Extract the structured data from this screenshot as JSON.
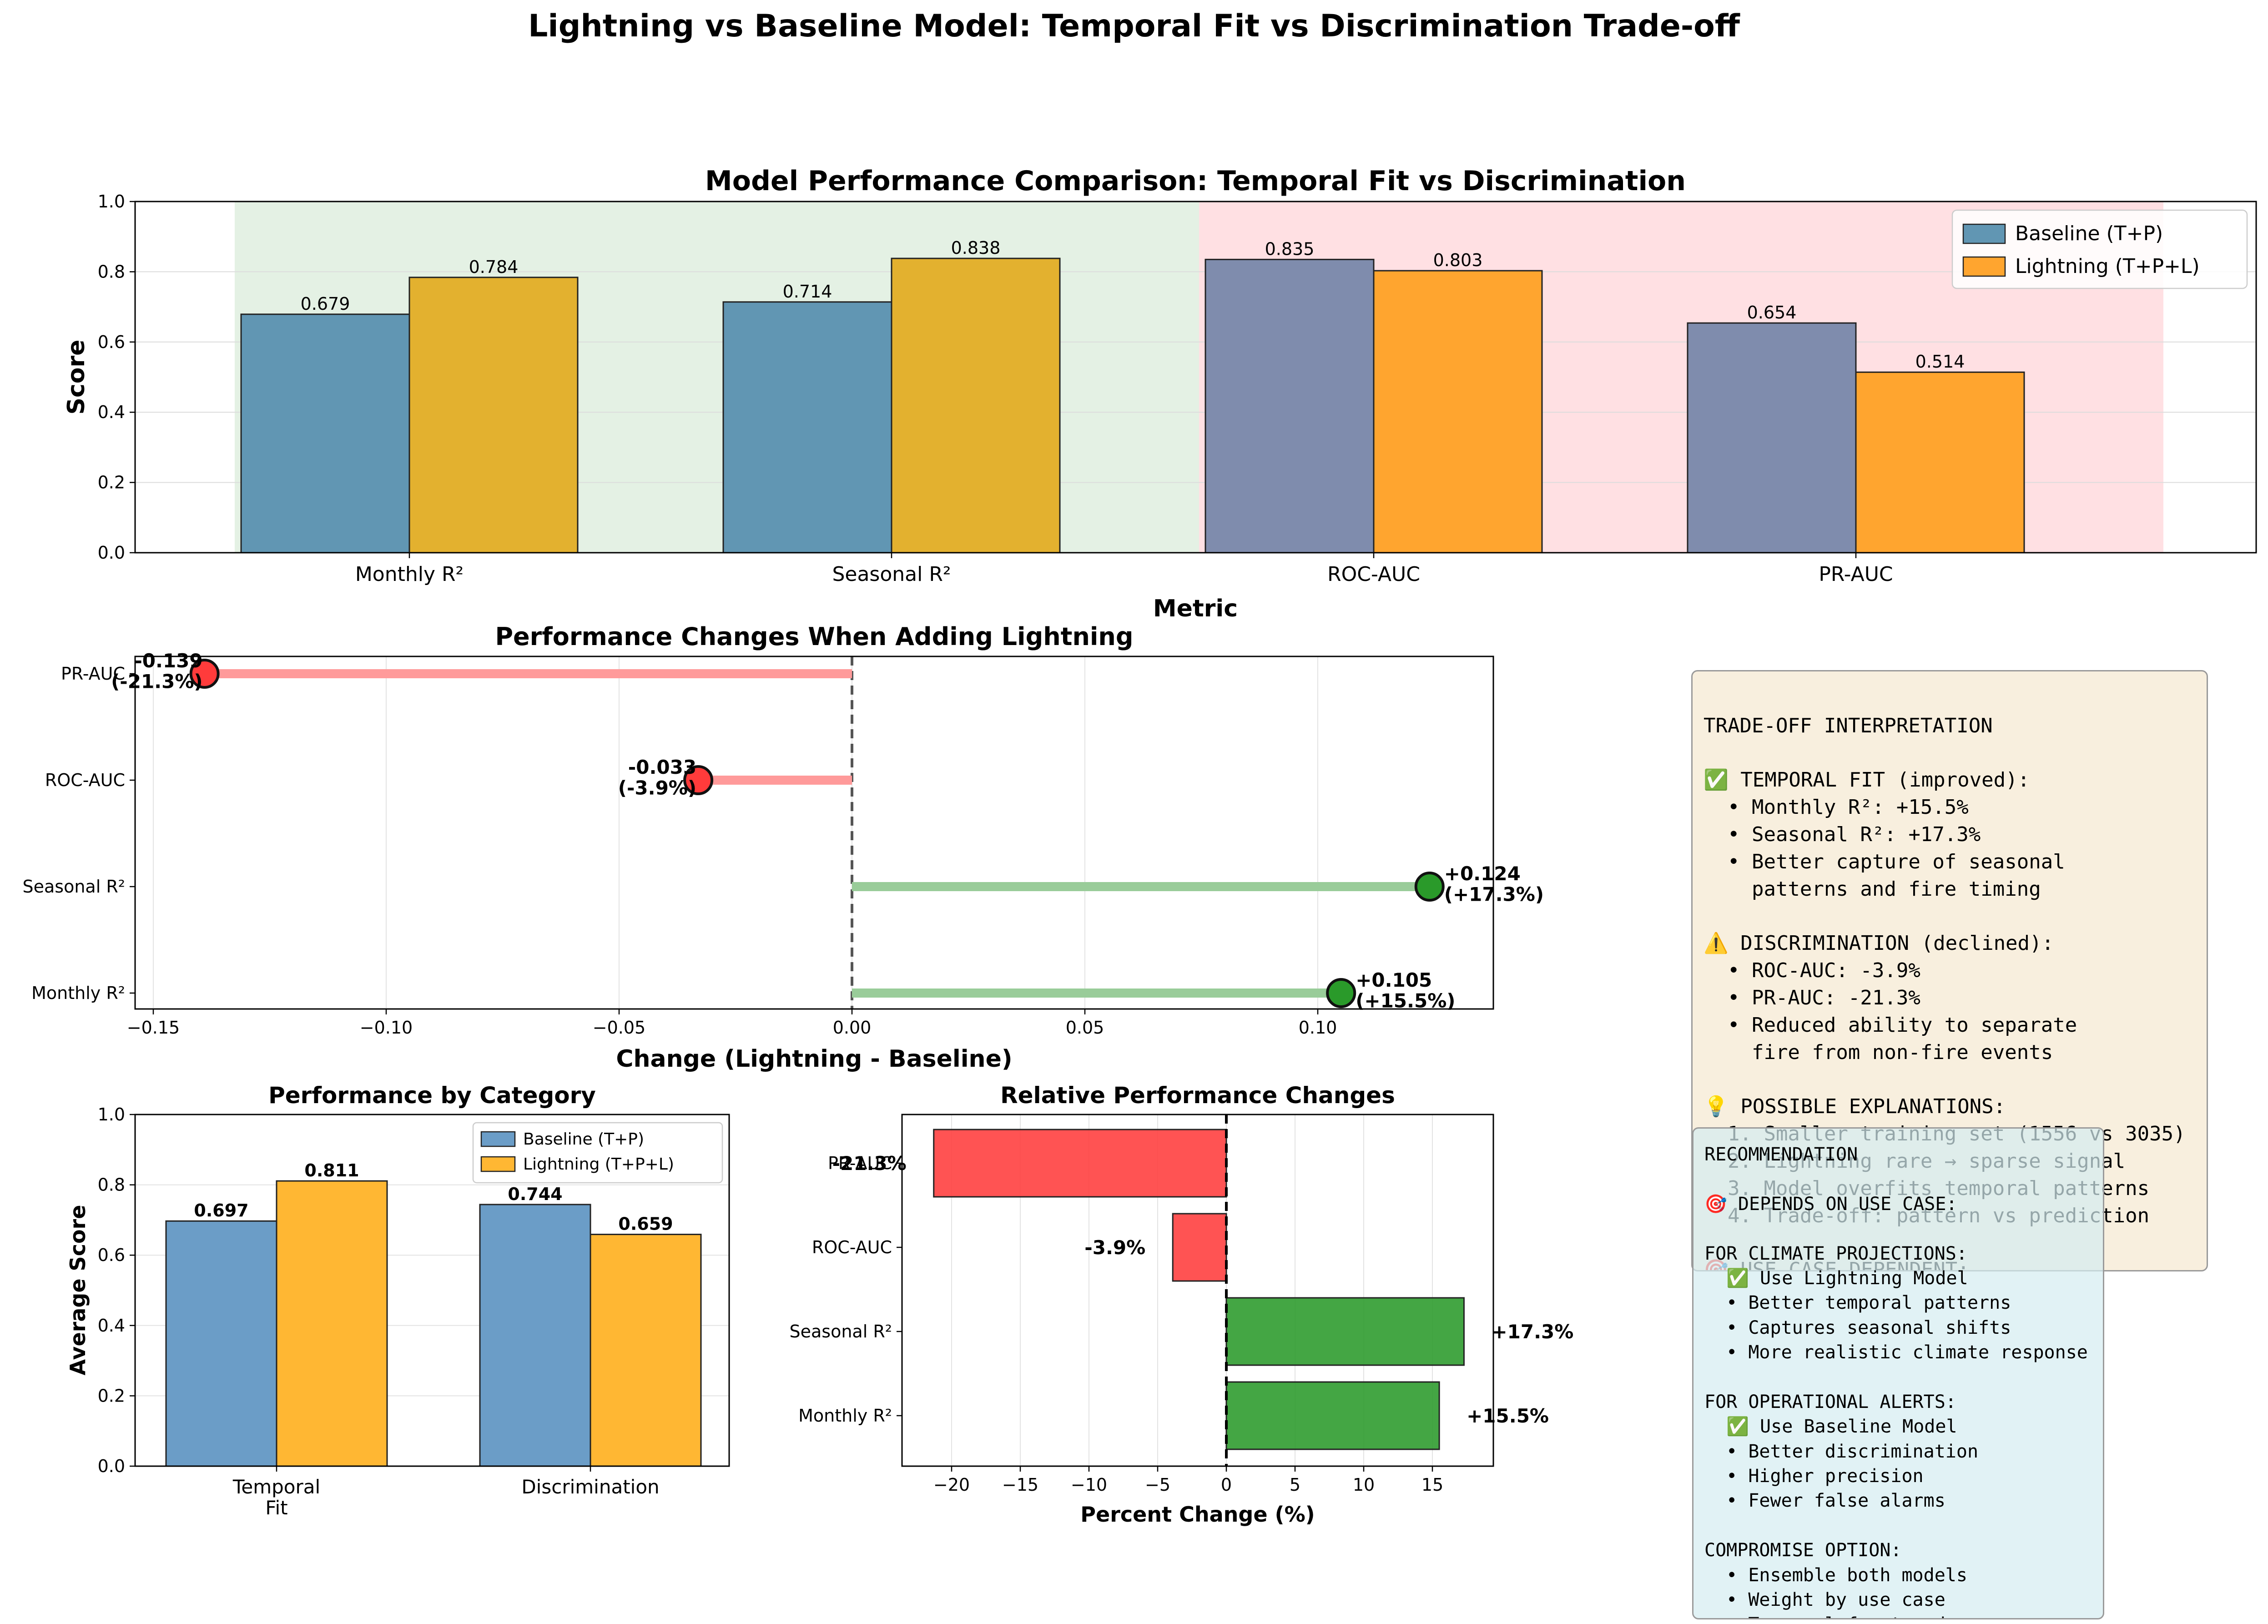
{
  "suptitle": "Lightning vs Baseline Model: Temporal Fit vs Discrimination Trade-off",
  "colors": {
    "baseline": "#6196b3",
    "baseline_alt": "#7f8cad",
    "lightning": "#e3b12f",
    "lightning_alt": "#ffa52f",
    "baseline_cat": "#6b9dc7",
    "lightning_cat": "#ffb733",
    "positive": "#2a9a2a",
    "negative": "#ff3b3b",
    "positive_stem": "#99cc99",
    "negative_stem": "#ff9a9a",
    "temporal_band": "#e4f1e4",
    "discrimination_band": "#ffe0e3"
  },
  "chart_data": [
    {
      "id": "comparison",
      "type": "bar",
      "title": "Model Performance Comparison: Temporal Fit vs Discrimination",
      "xlabel": "Metric",
      "ylabel": "Score",
      "ylim": [
        0,
        1.0
      ],
      "yticks": [
        "0.0",
        "0.2",
        "0.4",
        "0.6",
        "0.8",
        "1.0"
      ],
      "categories": [
        "Monthly R²",
        "Seasonal R²",
        "ROC-AUC",
        "PR-AUC"
      ],
      "series": [
        {
          "name": "Baseline (T+P)",
          "values": [
            0.679,
            0.714,
            0.835,
            0.654
          ],
          "labels": [
            "0.679",
            "0.714",
            "0.835",
            "0.654"
          ]
        },
        {
          "name": "Lightning (T+P+L)",
          "values": [
            0.784,
            0.838,
            0.803,
            0.514
          ],
          "labels": [
            "0.784",
            "0.838",
            "0.803",
            "0.514"
          ]
        }
      ],
      "grid": true,
      "legend": "top-right"
    },
    {
      "id": "changes",
      "type": "lollipop",
      "title": "Performance Changes When Adding Lightning",
      "xlabel": "Change (Lightning - Baseline)",
      "xlim": [
        -0.15,
        0.15
      ],
      "xticks": [
        "−0.15",
        "−0.10",
        "−0.05",
        "0.00",
        "0.05",
        "0.10"
      ],
      "categories": [
        "Monthly R²",
        "Seasonal R²",
        "ROC-AUC",
        "PR-AUC"
      ],
      "values": [
        0.105,
        0.124,
        -0.033,
        -0.139
      ],
      "labels": [
        "+0.105\n(+15.5%)",
        "+0.124\n(+17.3%)",
        "-0.033\n(-3.9%)",
        "-0.139\n(-21.3%)"
      ],
      "grid": true
    },
    {
      "id": "category",
      "type": "bar",
      "title": "Performance by Category",
      "ylabel": "Average Score",
      "ylim": [
        0,
        1.0
      ],
      "yticks": [
        "0.0",
        "0.2",
        "0.4",
        "0.6",
        "0.8",
        "1.0"
      ],
      "categories": [
        "Temporal\nFit",
        "Discrimination"
      ],
      "series": [
        {
          "name": "Baseline (T+P)",
          "values": [
            0.697,
            0.744
          ],
          "labels": [
            "0.697",
            "0.744"
          ]
        },
        {
          "name": "Lightning (T+P+L)",
          "values": [
            0.811,
            0.659
          ],
          "labels": [
            "0.811",
            "0.659"
          ]
        }
      ],
      "grid": true,
      "legend": "top-right"
    },
    {
      "id": "relative",
      "type": "bar",
      "orientation": "horizontal",
      "title": "Relative Performance Changes",
      "xlabel": "Percent Change (%)",
      "xlim": [
        -23.5,
        19.5
      ],
      "xticks": [
        "−20",
        "−15",
        "−10",
        "−5",
        "0",
        "5",
        "10",
        "15"
      ],
      "categories": [
        "Monthly R²",
        "Seasonal R²",
        "ROC-AUC",
        "PR-AUC"
      ],
      "values": [
        15.5,
        17.3,
        -3.9,
        -21.3
      ],
      "labels": [
        "+15.5%",
        "+17.3%",
        "-3.9%",
        "-21.3%"
      ],
      "grid": true
    }
  ],
  "panels": {
    "tradeoff_text": "\nTRADE-OFF INTERPRETATION\n\n✅ TEMPORAL FIT (improved):\n  • Monthly R²: +15.5%\n  • Seasonal R²: +17.3%\n  • Better capture of seasonal\n    patterns and fire timing\n\n⚠️ DISCRIMINATION (declined):\n  • ROC-AUC: -3.9%\n  • PR-AUC: -21.3%\n  • Reduced ability to separate\n    fire from non-fire events\n\n💡 POSSIBLE EXPLANATIONS:\n  1. Smaller training set (1556 vs 3035)\n  2. Lightning rare → sparse signal\n  3. Model overfits temporal patterns\n  4. Trade-off: pattern vs prediction\n\n🎯 USE CASE DEPENDENT:\n  • Climate projections → Lightning\n  • Real-time alerts → Baseline",
    "recommendation_text": "RECOMMENDATION\n\n🎯 DEPENDS ON USE CASE:\n\nFOR CLIMATE PROJECTIONS:\n  ✅ Use Lightning Model\n  • Better temporal patterns\n  • Captures seasonal shifts\n  • More realistic climate response\n\nFOR OPERATIONAL ALERTS:\n  ✅ Use Baseline Model\n  • Better discrimination\n  • Higher precision\n  • Fewer false alarms\n\nCOMPROMISE OPTION:\n  • Ensemble both models\n  • Weight by use case\n  • Temporal for trends\n  • Discrimination for alerts"
  }
}
